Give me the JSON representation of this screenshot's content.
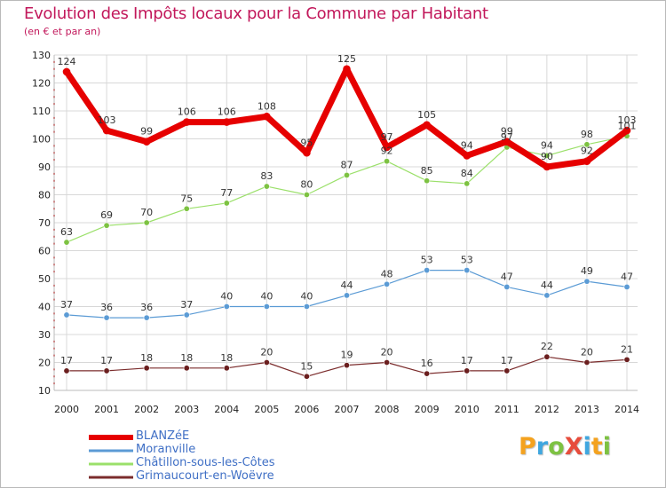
{
  "title": "Evolution des Impôts locaux pour la Commune par Habitant",
  "subtitle": "(en € et par an)",
  "logo": {
    "text": "ProXiti",
    "colors": [
      "#f4a21f",
      "#3fa7e0",
      "#7dc242",
      "#e74c3c",
      "#3fa7e0",
      "#f4a21f",
      "#7dc242"
    ]
  },
  "chart_data": {
    "type": "line",
    "title": "Evolution des Impôts locaux pour la Commune par Habitant",
    "ylabel": "(en € et par an)",
    "x": [
      "2000",
      "2001",
      "2002",
      "2003",
      "2004",
      "2005",
      "2006",
      "2007",
      "2008",
      "2009",
      "2010",
      "2011",
      "2012",
      "2013",
      "2014"
    ],
    "ylim": [
      10,
      130
    ],
    "yticks": [
      "10",
      "20",
      "30",
      "40",
      "50",
      "60",
      "70",
      "80",
      "90",
      "100",
      "110",
      "120",
      "130"
    ],
    "grid": true,
    "legend_position": "bottom-left",
    "series": [
      {
        "key": "s0",
        "name": "BLANZéE",
        "color": "#e60000",
        "width": 7,
        "point_color": "#e60000",
        "values": [
          124,
          103,
          99,
          106,
          106,
          108,
          95,
          125,
          97,
          105,
          94,
          99,
          90,
          92,
          103
        ]
      },
      {
        "key": "s1",
        "name": "Moranville",
        "color": "#5b9bd5",
        "width": 1.2,
        "point_color": "#5b9bd5",
        "values": [
          37,
          36,
          36,
          37,
          40,
          40,
          40,
          44,
          48,
          53,
          53,
          47,
          44,
          49,
          47
        ]
      },
      {
        "key": "s2",
        "name": "Châtillon-sous-les-Côtes",
        "color": "#9be06a",
        "width": 1.2,
        "point_color": "#7dc242",
        "values": [
          63,
          69,
          70,
          75,
          77,
          83,
          80,
          87,
          92,
          85,
          84,
          97,
          94,
          98,
          101
        ]
      },
      {
        "key": "s3",
        "name": "Grimaucourt-en-Woëvre",
        "color": "#7b2c2c",
        "width": 1.2,
        "point_color": "#6b1f1f",
        "values": [
          17,
          17,
          18,
          18,
          18,
          20,
          15,
          19,
          20,
          16,
          17,
          17,
          22,
          20,
          21
        ]
      }
    ]
  }
}
